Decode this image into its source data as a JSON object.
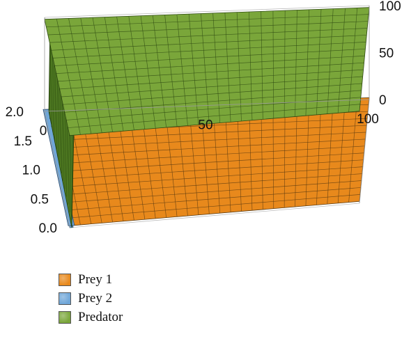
{
  "chart_data": {
    "type": "surface3d",
    "title": "",
    "axes": {
      "x": {
        "ticks": [
          "0",
          "50",
          "100"
        ],
        "range": [
          0,
          100
        ]
      },
      "y": {
        "ticks": [
          "0.0",
          "0.5",
          "1.0",
          "1.5",
          "2.0"
        ],
        "range": [
          0,
          2
        ]
      },
      "z": {
        "ticks": [
          "0",
          "50",
          "100"
        ],
        "range": [
          0,
          100
        ]
      }
    },
    "legend_placement": "bottom-left",
    "series": [
      {
        "name": "Prey 1",
        "color": "#e8891c",
        "steady_value": 2
      },
      {
        "name": "Prey 2",
        "color": "#6fa6d8",
        "steady_value": 0
      },
      {
        "name": "Predator",
        "color": "#7aa63a",
        "steady_value": 98
      }
    ]
  }
}
